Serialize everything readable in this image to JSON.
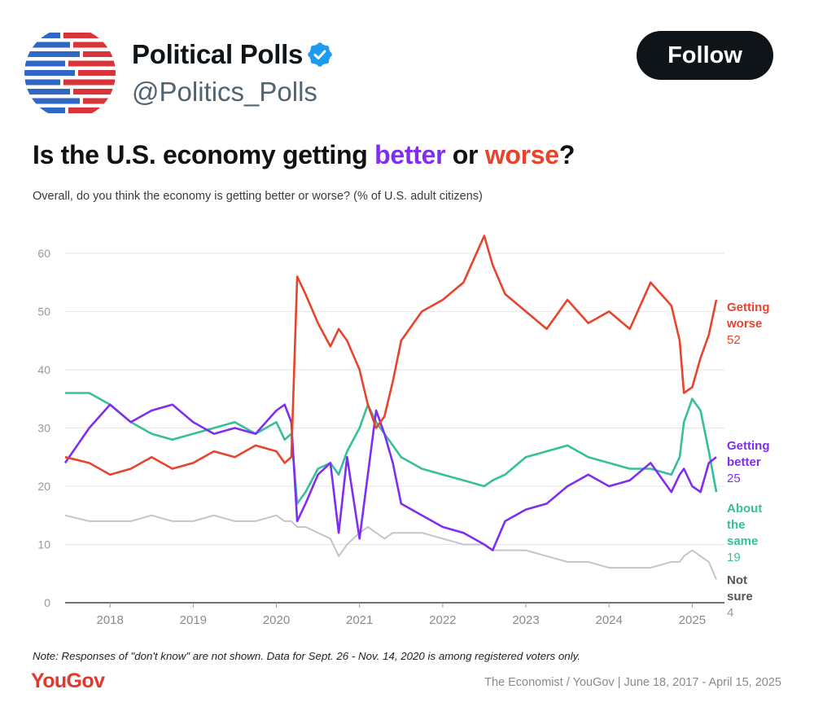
{
  "post": {
    "author_name": "Political Polls",
    "author_handle": "@Politics_Polls",
    "follow_label": "Follow"
  },
  "colors": {
    "worse": "#e8432c",
    "better": "#7f2df0",
    "same": "#35bf9a",
    "not_sure": "#c4c4cc",
    "grid": "#e6e6e6",
    "axis": "#444444"
  },
  "chart_data": {
    "type": "line",
    "title": {
      "prefix": "Is the U.S. economy getting ",
      "better": "better",
      "middle": " or ",
      "worse": "worse",
      "suffix": "?"
    },
    "subtitle": "Overall, do you think the economy is getting better or worse? (% of U.S. adult citizens)",
    "x_ticks": [
      "2018",
      "2019",
      "2020",
      "2021",
      "2022",
      "2023",
      "2024",
      "2025"
    ],
    "x_range": [
      2017.46,
      2025.29
    ],
    "y_ticks": [
      "0",
      "10",
      "20",
      "30",
      "40",
      "50",
      "60"
    ],
    "ylim": [
      0,
      66
    ],
    "grid": true,
    "x": [
      2017.46,
      2017.75,
      2018.0,
      2018.25,
      2018.5,
      2018.75,
      2019.0,
      2019.25,
      2019.5,
      2019.75,
      2020.0,
      2020.1,
      2020.18,
      2020.25,
      2020.35,
      2020.5,
      2020.65,
      2020.75,
      2020.85,
      2021.0,
      2021.1,
      2021.2,
      2021.3,
      2021.4,
      2021.5,
      2021.75,
      2022.0,
      2022.25,
      2022.5,
      2022.6,
      2022.75,
      2023.0,
      2023.25,
      2023.5,
      2023.75,
      2024.0,
      2024.25,
      2024.5,
      2024.75,
      2024.85,
      2024.9,
      2025.0,
      2025.1,
      2025.2,
      2025.29
    ],
    "series": [
      {
        "name": "Getting worse",
        "key": "worse",
        "values": [
          25,
          24,
          22,
          23,
          25,
          23,
          24,
          26,
          25,
          27,
          26,
          24,
          25,
          56,
          53,
          48,
          44,
          47,
          45,
          40,
          34,
          30,
          32,
          38,
          45,
          50,
          52,
          55,
          63,
          58,
          53,
          50,
          47,
          52,
          48,
          50,
          47,
          55,
          51,
          45,
          36,
          37,
          42,
          46,
          52
        ],
        "end_label_lines": [
          "Getting",
          "worse"
        ],
        "end_value": "52"
      },
      {
        "name": "Getting better",
        "key": "better",
        "values": [
          24,
          30,
          34,
          31,
          33,
          34,
          31,
          29,
          30,
          29,
          33,
          34,
          31,
          14,
          17,
          22,
          24,
          12,
          25,
          11,
          22,
          33,
          29,
          24,
          17,
          15,
          13,
          12,
          10,
          9,
          14,
          16,
          17,
          20,
          22,
          20,
          21,
          24,
          19,
          22,
          23,
          20,
          19,
          24,
          25
        ],
        "end_label_lines": [
          "Getting",
          "better"
        ],
        "end_value": "25"
      },
      {
        "name": "About the same",
        "key": "same",
        "values": [
          36,
          36,
          34,
          31,
          29,
          28,
          29,
          30,
          31,
          29,
          31,
          28,
          29,
          17,
          19,
          23,
          24,
          22,
          26,
          30,
          34,
          31,
          29,
          27,
          25,
          23,
          22,
          21,
          20,
          21,
          22,
          25,
          26,
          27,
          25,
          24,
          23,
          23,
          22,
          25,
          31,
          35,
          33,
          26,
          19
        ],
        "end_label_lines": [
          "About",
          "the",
          "same"
        ],
        "end_value": "19"
      },
      {
        "name": "Not sure",
        "key": "not_sure",
        "values": [
          15,
          14,
          14,
          14,
          15,
          14,
          14,
          15,
          14,
          14,
          15,
          14,
          14,
          13,
          13,
          12,
          11,
          8,
          10,
          12,
          13,
          12,
          11,
          12,
          12,
          12,
          11,
          10,
          10,
          9,
          9,
          9,
          8,
          7,
          7,
          6,
          6,
          6,
          7,
          7,
          8,
          9,
          8,
          7,
          4
        ],
        "end_label_lines": [
          "Not",
          "sure"
        ],
        "end_value": "4"
      }
    ]
  },
  "note": "Note: Responses of \"don't know\" are not shown. Data for Sept. 26 - Nov. 14, 2020 is among registered voters only.",
  "brand": "YouGov",
  "source": "The Economist / YouGov | June 18, 2017 - April 15, 2025"
}
